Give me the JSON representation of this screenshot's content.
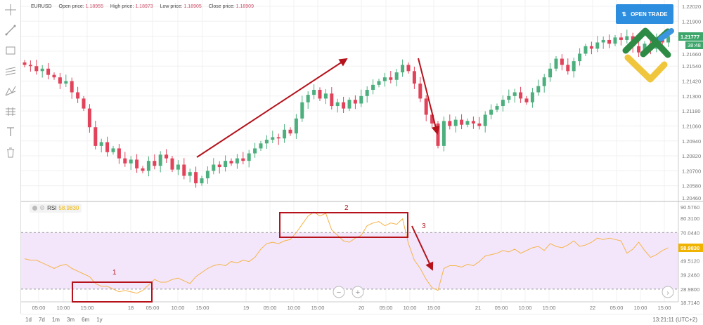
{
  "legend": {
    "symbol": "EURUSD",
    "open_label": "Open price:",
    "open": "1.18955",
    "high_label": "High price:",
    "high": "1.18973",
    "low_label": "Low price:",
    "low": "1.18905",
    "close_label": "Close price:",
    "close": "1.18909"
  },
  "open_trade_label": "OPEN TRADE",
  "toolbar": {
    "icons": [
      "crosshair-icon",
      "trend-line-icon",
      "rectangle-icon",
      "channel-icon",
      "pitchfork-icon",
      "fib-grid-icon",
      "text-icon",
      "trash-icon"
    ]
  },
  "price_tag": "1.21777",
  "countdown_tag": "38:48",
  "rsi": {
    "name": "RSI",
    "value": "58.9830"
  },
  "bottom": {
    "ranges": [
      "1d",
      "7d",
      "1m",
      "3m",
      "6m",
      "1y"
    ],
    "clock": "13:21:11 (UTC+2)"
  },
  "annotations": [
    "1",
    "2",
    "3"
  ],
  "colors": {
    "up": "#4caf7d",
    "down": "#e0435a",
    "rsi_line": "#f5b44a",
    "rsi_band": "#f3e6fb",
    "button": "#2d8ee0",
    "annotation": "#b5121b"
  },
  "chart_data": {
    "type": "candlestick",
    "price_axis": {
      "ticks": [
        "1.22020",
        "1.21900",
        "1.21660",
        "1.21540",
        "1.21420",
        "1.21300",
        "1.21180",
        "1.21060",
        "1.20940",
        "1.20820",
        "1.20700",
        "1.20580",
        "1.20460"
      ],
      "range": [
        1.2046,
        1.2202
      ]
    },
    "rsi_axis": {
      "ticks": [
        "90.5760",
        "80.3100",
        "70.0440",
        "49.5120",
        "39.2460",
        "28.9800",
        "18.7140"
      ],
      "range": [
        18.714,
        90.576
      ],
      "upper": 70.044,
      "lower": 28.98
    },
    "time_ticks": [
      "05:00",
      "10:00",
      "15:00",
      "18",
      "05:00",
      "10:00",
      "15:00",
      "19",
      "05:00",
      "10:00",
      "15:00",
      "20",
      "05:00",
      "10:00",
      "15:00",
      "21",
      "05:00",
      "10:00",
      "15:00",
      "22",
      "05:00",
      "10:00",
      "15:00"
    ],
    "closes": [
      1.2155,
      1.2154,
      1.215,
      1.2152,
      1.2147,
      1.2145,
      1.214,
      1.2142,
      1.2133,
      1.2128,
      1.212,
      1.2105,
      1.209,
      1.2093,
      1.2085,
      1.2088,
      1.208,
      1.2076,
      1.2079,
      1.2072,
      1.207,
      1.2078,
      1.2074,
      1.2083,
      1.208,
      1.2071,
      1.2075,
      1.2066,
      1.2069,
      1.206,
      1.2064,
      1.207,
      1.2075,
      1.2073,
      1.2078,
      1.2076,
      1.208,
      1.2078,
      1.2084,
      1.2088,
      1.2092,
      1.2095,
      1.2097,
      1.2096,
      1.2103,
      1.21,
      1.2112,
      1.2125,
      1.2131,
      1.2135,
      1.2128,
      1.2132,
      1.2122,
      1.2125,
      1.212,
      1.2127,
      1.2124,
      1.213,
      1.2135,
      1.2139,
      1.2142,
      1.2145,
      1.2143,
      1.2149,
      1.2155,
      1.215,
      1.214,
      1.2128,
      1.2115,
      1.2108,
      1.209,
      1.211,
      1.2106,
      1.2111,
      1.2107,
      1.211,
      1.2108,
      1.2106,
      1.2115,
      1.2119,
      1.2122,
      1.2127,
      1.213,
      1.2133,
      1.2128,
      1.2125,
      1.2133,
      1.2138,
      1.2145,
      1.2152,
      1.216,
      1.2155,
      1.215,
      1.2158,
      1.2164,
      1.217,
      1.2168,
      1.2173,
      1.2175,
      1.2172,
      1.2177,
      1.2175,
      1.2178,
      1.217,
      1.2165,
      1.2172,
      1.2168,
      1.2175,
      1.2173,
      1.2178
    ],
    "rsi_values": [
      51,
      50,
      50,
      48,
      46,
      44,
      46,
      47,
      44,
      42,
      40,
      38,
      33,
      31,
      31,
      29,
      27,
      28,
      27,
      26,
      28,
      32,
      36,
      34,
      34,
      36,
      37,
      35,
      33,
      38,
      41,
      44,
      46,
      47,
      46,
      49,
      48,
      50,
      49,
      52,
      58,
      62,
      63,
      62,
      64,
      65,
      70,
      76,
      82,
      85,
      82,
      84,
      72,
      68,
      64,
      63,
      66,
      68,
      75,
      77,
      78,
      75,
      77,
      76,
      80,
      62,
      50,
      44,
      36,
      30,
      28,
      44,
      46,
      46,
      45,
      47,
      46,
      49,
      53,
      54,
      55,
      57,
      56,
      58,
      55,
      57,
      59,
      60,
      57,
      62,
      60,
      59,
      61,
      64,
      60,
      61,
      63,
      66,
      65,
      66,
      65,
      64,
      55,
      58,
      63,
      57,
      52,
      54,
      57,
      59
    ]
  }
}
